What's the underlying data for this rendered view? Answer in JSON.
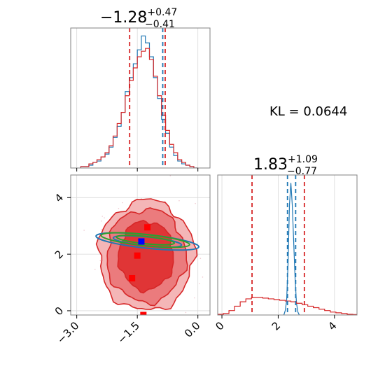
{
  "figure": {
    "kl_text": "KL = 0.0644"
  },
  "colors": {
    "blue_hist": "#1f77b4",
    "red_hist": "#d62728",
    "blue_marker": "#0000ff",
    "red_marker": "#ff0000",
    "green_contour": "#2ca02c",
    "contour_fill_outer": "#f4b6b7",
    "contour_fill_mid": "#eb7b7d",
    "contour_fill_inner": "#e03536",
    "grid": "#d9d9d9"
  },
  "chart_data": [
    {
      "type": "histogram",
      "panel": "top-left",
      "parameter": "x",
      "title": {
        "median": "−1.28",
        "plus": "+0.47",
        "minus": "−0.41"
      },
      "xlim": [
        -3.15,
        0.3
      ],
      "show_x_tick_labels": false,
      "x_ticks": [
        -3.0,
        -1.5,
        0.0
      ],
      "grid": true,
      "quantile_lines": [
        {
          "series": "red",
          "x": -1.69
        },
        {
          "series": "blue",
          "x": -0.87
        },
        {
          "series": "red",
          "x": -0.81
        }
      ],
      "series": [
        {
          "name": "blue",
          "color": "#1f77b4",
          "style": "step",
          "x": [
            -2.85,
            -2.75,
            -2.65,
            -2.55,
            -2.45,
            -2.35,
            -2.25,
            -2.15,
            -2.05,
            -1.95,
            -1.85,
            -1.75,
            -1.65,
            -1.55,
            -1.45,
            -1.35,
            -1.25,
            -1.15,
            -1.05,
            -0.95,
            -0.85,
            -0.75,
            -0.65,
            -0.55,
            -0.45,
            -0.35,
            -0.25,
            -0.15,
            -0.05
          ],
          "y": [
            0.01,
            0.01,
            0.02,
            0.04,
            0.05,
            0.08,
            0.1,
            0.15,
            0.22,
            0.3,
            0.4,
            0.55,
            0.65,
            0.75,
            0.85,
            0.95,
            0.9,
            0.8,
            0.65,
            0.5,
            0.35,
            0.25,
            0.15,
            0.09,
            0.05,
            0.03,
            0.02,
            0.01,
            0.0
          ]
        },
        {
          "name": "red",
          "color": "#d62728",
          "style": "step",
          "x": [
            -2.85,
            -2.75,
            -2.65,
            -2.55,
            -2.45,
            -2.35,
            -2.25,
            -2.15,
            -2.05,
            -1.95,
            -1.85,
            -1.75,
            -1.65,
            -1.55,
            -1.45,
            -1.35,
            -1.25,
            -1.15,
            -1.05,
            -0.95,
            -0.85,
            -0.75,
            -0.65,
            -0.55,
            -0.45,
            -0.35,
            -0.25,
            -0.15,
            -0.05
          ],
          "y": [
            0.01,
            0.01,
            0.03,
            0.04,
            0.06,
            0.08,
            0.11,
            0.16,
            0.23,
            0.32,
            0.4,
            0.52,
            0.63,
            0.72,
            0.8,
            0.84,
            0.86,
            0.78,
            0.66,
            0.52,
            0.38,
            0.27,
            0.17,
            0.11,
            0.06,
            0.04,
            0.02,
            0.01,
            0.0
          ]
        }
      ]
    },
    {
      "type": "histogram",
      "panel": "bottom-right",
      "parameter": "y",
      "title": {
        "median": "1.83",
        "plus": "+1.09",
        "minus": "−0.77"
      },
      "xlim": [
        -0.15,
        4.8
      ],
      "x_ticks": [
        0,
        2,
        4
      ],
      "x_tick_labels": [
        "0",
        "2",
        "4"
      ],
      "grid": true,
      "quantile_lines": [
        {
          "series": "red",
          "x": 1.07
        },
        {
          "series": "blue",
          "x": 2.33
        },
        {
          "series": "blue",
          "x": 2.62
        },
        {
          "series": "red",
          "x": 2.93
        }
      ],
      "series": [
        {
          "name": "blue",
          "color": "#1f77b4",
          "style": "line",
          "x": [
            2.2,
            2.25,
            2.3,
            2.35,
            2.4,
            2.45,
            2.5,
            2.55,
            2.6,
            2.65,
            2.7,
            2.75
          ],
          "y": [
            0.0,
            0.03,
            0.1,
            0.35,
            0.75,
            0.9,
            0.75,
            0.5,
            0.25,
            0.08,
            0.02,
            0.0
          ]
        },
        {
          "name": "red",
          "color": "#d62728",
          "style": "step",
          "x": [
            -0.05,
            0.15,
            0.35,
            0.55,
            0.75,
            0.95,
            1.15,
            1.35,
            1.55,
            1.75,
            1.95,
            2.15,
            2.35,
            2.55,
            2.75,
            2.95,
            3.15,
            3.35,
            3.55,
            3.75,
            3.95,
            4.15,
            4.35,
            4.55,
            4.75
          ],
          "y": [
            0.005,
            0.01,
            0.03,
            0.06,
            0.09,
            0.11,
            0.12,
            0.12,
            0.115,
            0.11,
            0.105,
            0.1,
            0.095,
            0.09,
            0.08,
            0.07,
            0.06,
            0.05,
            0.04,
            0.03,
            0.02,
            0.015,
            0.01,
            0.005,
            0.003
          ]
        }
      ]
    },
    {
      "type": "contour",
      "panel": "bottom-left",
      "x_parameter": "x",
      "y_parameter": "y",
      "xlim": [
        -3.15,
        0.3
      ],
      "ylim": [
        -0.15,
        4.8
      ],
      "x_ticks": [
        -3.0,
        -1.5,
        0.0
      ],
      "x_tick_labels": [
        "−3.0",
        "−1.5",
        "0.0"
      ],
      "y_ticks": [
        0,
        2,
        4
      ],
      "y_tick_labels": [
        "0",
        "2",
        "4"
      ],
      "grid": true,
      "red_contours": [
        {
          "level": "outer",
          "cx": -1.28,
          "cy": 1.95,
          "rx": 1.18,
          "ry": 1.95
        },
        {
          "level": "mid",
          "cx": -1.28,
          "cy": 1.95,
          "rx": 0.98,
          "ry": 1.65
        },
        {
          "level": "inner",
          "cx": -1.28,
          "cy": 1.95,
          "rx": 0.68,
          "ry": 1.22
        }
      ],
      "blue_contours": [
        {
          "cx": -1.25,
          "cy": 2.45,
          "rx": 1.28,
          "ry": 0.24,
          "angle_deg": 6
        },
        {
          "cx": -1.25,
          "cy": 2.45,
          "rx": 0.85,
          "ry": 0.16,
          "angle_deg": 6
        }
      ],
      "green_contours": [
        {
          "cx": -1.3,
          "cy": 2.5,
          "rx": 1.1,
          "ry": 0.2,
          "angle_deg": 6
        },
        {
          "cx": -1.3,
          "cy": 2.5,
          "rx": 0.72,
          "ry": 0.13,
          "angle_deg": 6
        }
      ],
      "markers": [
        {
          "series": "red",
          "x": -1.25,
          "y": 2.95
        },
        {
          "series": "red",
          "x": -1.5,
          "y": 1.95
        },
        {
          "series": "red",
          "x": -1.63,
          "y": 1.15
        },
        {
          "series": "red",
          "x": -1.35,
          "y": -0.15
        },
        {
          "series": "blue",
          "x": -1.4,
          "y": 2.45
        }
      ]
    }
  ]
}
